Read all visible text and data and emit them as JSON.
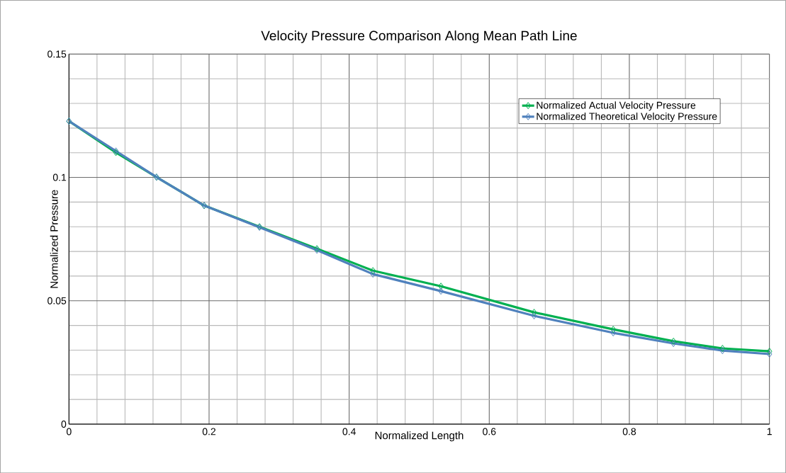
{
  "chart_data": {
    "type": "line",
    "title": "Velocity Pressure Comparison Along Mean Path Line",
    "xlabel": "Normalized Length",
    "ylabel": "Normalized Pressure",
    "x": [
      0,
      0.067,
      0.125,
      0.193,
      0.272,
      0.354,
      0.434,
      0.531,
      0.664,
      0.777,
      0.863,
      0.933,
      1
    ],
    "series": [
      {
        "name": "Normalized Actual Velocity Pressure",
        "color": "#00b050",
        "values": [
          0.1228,
          0.1101,
          0.1001,
          0.0886,
          0.08,
          0.0711,
          0.0622,
          0.0559,
          0.0453,
          0.0384,
          0.0336,
          0.0307,
          0.0295
        ]
      },
      {
        "name": "Normalized Theoretical Velocity Pressure",
        "color": "#4f81bd",
        "values": [
          0.1228,
          0.1107,
          0.1001,
          0.0886,
          0.0798,
          0.0705,
          0.0608,
          0.0539,
          0.0439,
          0.037,
          0.0327,
          0.0298,
          0.0284
        ]
      }
    ],
    "xlim": [
      0,
      1
    ],
    "ylim": [
      0,
      0.15
    ],
    "xticks": [
      0,
      0.2,
      0.4,
      0.6,
      0.8,
      1
    ],
    "yticks": [
      0,
      0.05,
      0.1,
      0.15
    ],
    "grid": true,
    "legend": "top right",
    "marker": "diamond",
    "line_style": "solid"
  }
}
